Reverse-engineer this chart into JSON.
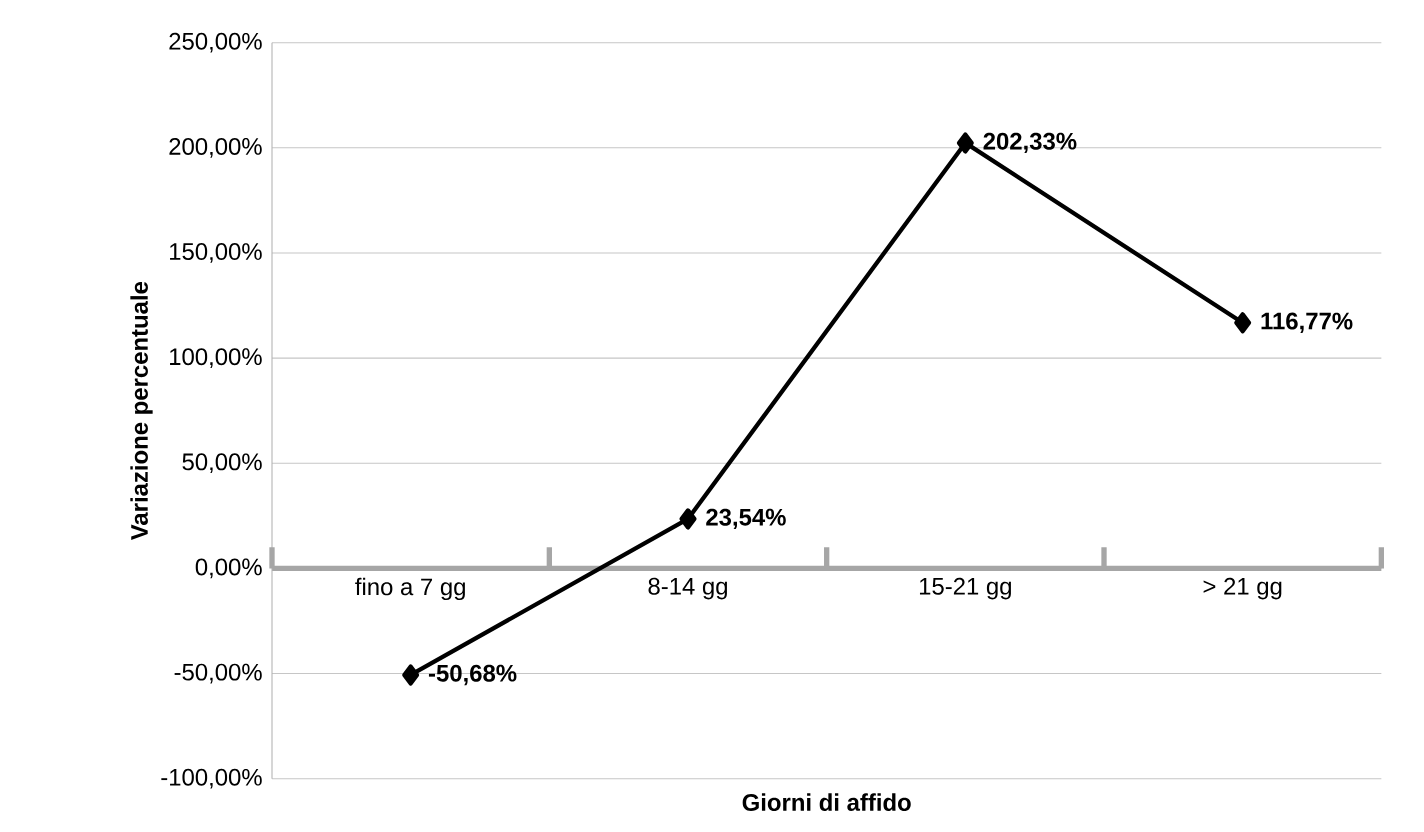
{
  "chart_data": {
    "type": "line",
    "xlabel": "Giorni di affido",
    "ylabel": "Variazione percentuale",
    "categories": [
      "fino a 7 gg",
      "8-14 gg",
      "15-21 gg",
      "> 21 gg"
    ],
    "values": [
      -50.68,
      23.54,
      202.33,
      116.77
    ],
    "value_labels": [
      "**-50,68%**",
      "**23,54%**",
      "**202,33%**",
      "**116,77%**"
    ],
    "color": "#000000",
    "marker": "diamond",
    "line_style": "solid",
    "grid": "y",
    "ylim": [
      -100,
      250
    ],
    "yticks": [
      {
        "value": -100,
        "label": "-100,00%"
      },
      {
        "value": -50,
        "label": "-50,00%"
      },
      {
        "value": 0,
        "label": "0,00%"
      },
      {
        "value": 50,
        "label": "50,00%"
      },
      {
        "value": 100,
        "label": "100,00%"
      },
      {
        "value": 150,
        "label": "150,00%"
      },
      {
        "value": 200,
        "label": "200,00%"
      },
      {
        "value": 250,
        "label": "250,00%"
      }
    ]
  }
}
